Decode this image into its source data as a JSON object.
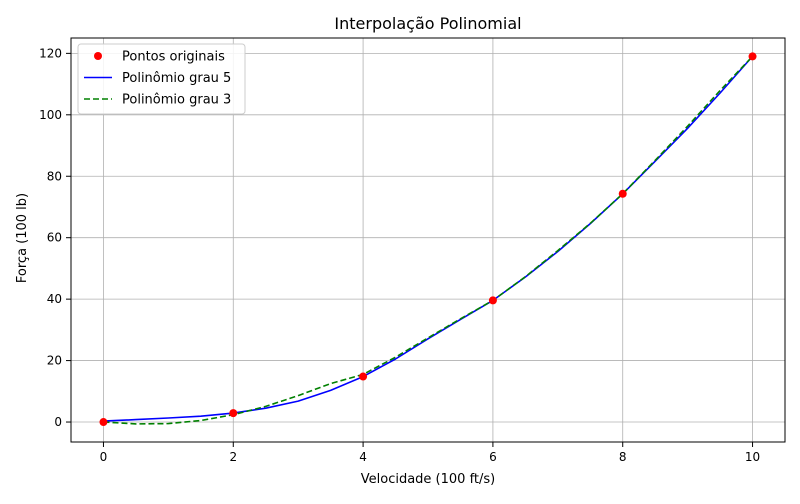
{
  "chart_data": {
    "type": "line",
    "title": "Interpolação Polinomial",
    "xlabel": "Velocidade (100 ft/s)",
    "ylabel": "Força (100 lb)",
    "xlim": [
      -0.5,
      10.5
    ],
    "ylim": [
      -6.5,
      125
    ],
    "xticks": [
      0,
      2,
      4,
      6,
      8,
      10
    ],
    "yticks": [
      0,
      20,
      40,
      60,
      80,
      100,
      120
    ],
    "grid": true,
    "legend_position": "top-left",
    "series": [
      {
        "name": "Pontos originais",
        "kind": "markers",
        "color": "#ff0000",
        "x": [
          0,
          2,
          4,
          6,
          8,
          10
        ],
        "y": [
          0,
          2.9,
          14.8,
          39.6,
          74.3,
          119
        ]
      },
      {
        "name": "Polinômio grau 5",
        "kind": "solid",
        "color": "#0000ff",
        "x": [
          0,
          0.5,
          1,
          1.5,
          2,
          2.5,
          3,
          3.5,
          4,
          4.5,
          5,
          5.5,
          6,
          6.5,
          7,
          7.5,
          8,
          8.5,
          9,
          9.5,
          10
        ],
        "y": [
          0.3,
          0.8,
          1.3,
          1.9,
          2.9,
          4.5,
          6.8,
          10.3,
          14.8,
          20.5,
          27.1,
          33.4,
          39.6,
          47.2,
          55.5,
          64.6,
          74.3,
          84.9,
          95.6,
          107.1,
          119
        ]
      },
      {
        "name": "Polinômio grau 3",
        "kind": "dashed",
        "color": "#008000",
        "x": [
          0,
          0.5,
          1,
          1.5,
          2,
          2.5,
          3,
          3.5,
          4,
          4.5,
          5,
          5.5,
          6,
          6.5,
          7,
          7.5,
          8,
          8.5,
          9,
          9.5,
          10
        ],
        "y": [
          0,
          -0.6,
          -0.5,
          0.5,
          2.4,
          5.1,
          8.6,
          12.5,
          15.5,
          21.1,
          27.4,
          33.6,
          39.6,
          47.3,
          55.8,
          64.7,
          74.3,
          85.2,
          96.3,
          107.9,
          119
        ]
      }
    ]
  }
}
